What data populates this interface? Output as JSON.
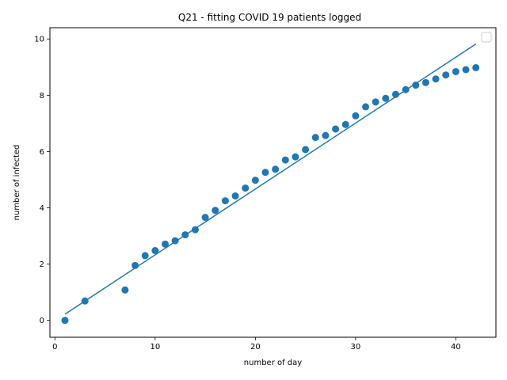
{
  "chart_data": {
    "type": "scatter",
    "title": "Q21 - fitting COVID 19 patients logged",
    "xlabel": "number of day",
    "ylabel": "number of infected",
    "xlim": [
      -0.5,
      44
    ],
    "ylim": [
      -0.6,
      10.4
    ],
    "xticks": [
      0,
      10,
      20,
      30,
      40
    ],
    "yticks": [
      0,
      2,
      4,
      6,
      8,
      10
    ],
    "grid": false,
    "legend": "top-right, empty box",
    "colors": {
      "series": "#1f77b4"
    },
    "series": [
      {
        "kind": "points",
        "x": [
          1,
          3,
          7,
          8,
          9,
          10,
          11,
          12,
          13,
          14,
          15,
          16,
          17,
          18,
          19,
          20,
          21,
          22,
          23,
          24,
          25,
          26,
          27,
          28,
          29,
          30,
          31,
          32,
          33,
          34,
          35,
          36,
          37,
          38,
          39,
          40,
          41,
          42
        ],
        "y": [
          0.0,
          0.69,
          1.08,
          1.95,
          2.3,
          2.48,
          2.71,
          2.83,
          3.04,
          3.22,
          3.66,
          3.91,
          4.25,
          4.42,
          4.7,
          4.98,
          5.26,
          5.37,
          5.7,
          5.81,
          6.07,
          6.5,
          6.57,
          6.8,
          6.96,
          7.27,
          7.59,
          7.76,
          7.89,
          8.03,
          8.2,
          8.36,
          8.45,
          8.58,
          8.72,
          8.84,
          8.91,
          8.98
        ]
      },
      {
        "kind": "line",
        "x": [
          1,
          42
        ],
        "y": [
          0.22,
          9.82
        ]
      }
    ]
  }
}
